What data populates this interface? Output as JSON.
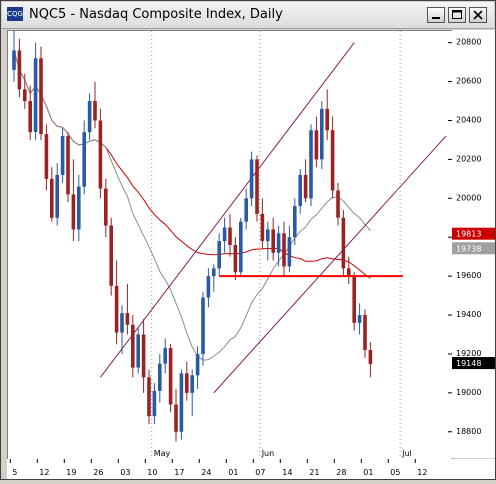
{
  "window": {
    "title": "NQC5 - Nasdaq Composite Index, Daily",
    "icon_label": "CQG",
    "buttons": [
      "minimize",
      "maximize",
      "close"
    ]
  },
  "chart_data": {
    "type": "candlestick",
    "symbol": "NQC5",
    "title": "Nasdaq Composite Index, Daily",
    "ylim": [
      18660,
      20860
    ],
    "y_ticks": [
      20800,
      20600,
      20400,
      20200,
      20000,
      19800,
      19600,
      19400,
      19200,
      19000,
      18800
    ],
    "x_month_labels": [
      {
        "label": "May",
        "index": 26
      },
      {
        "label": "Jun",
        "index": 46
      },
      {
        "label": "Jul",
        "index": 72
      }
    ],
    "x_day_ticks": [
      {
        "label": "5",
        "index": 0
      },
      {
        "label": "12",
        "index": 5
      },
      {
        "label": "19",
        "index": 10
      },
      {
        "label": "26",
        "index": 15
      },
      {
        "label": "03",
        "index": 20
      },
      {
        "label": "10",
        "index": 25
      },
      {
        "label": "17",
        "index": 30
      },
      {
        "label": "24",
        "index": 35
      },
      {
        "label": "01",
        "index": 40
      },
      {
        "label": "07",
        "index": 45
      },
      {
        "label": "14",
        "index": 50
      },
      {
        "label": "21",
        "index": 55
      },
      {
        "label": "28",
        "index": 60
      },
      {
        "label": "01",
        "index": 65
      },
      {
        "label": "05",
        "index": 70
      },
      {
        "label": "12",
        "index": 75
      }
    ],
    "price_labels": [
      {
        "value": 19813,
        "label": "19813",
        "color": "#cc0000"
      },
      {
        "value": 19738,
        "label": "19738",
        "color": "#a0a0a0"
      },
      {
        "value": 19148,
        "label": "19148",
        "color": "#000000"
      }
    ],
    "support_line": {
      "value": 19600,
      "from_index": 38,
      "to_index": 72,
      "color": "#ff0000"
    },
    "channel": {
      "lower": {
        "from": [
          37,
          19000
        ],
        "to": [
          80,
          20320
        ]
      },
      "upper": {
        "from": [
          16,
          19080
        ],
        "to": [
          63,
          20800
        ]
      },
      "color": "#8a1a5a"
    },
    "candles": [
      [
        20660,
        20860,
        20600,
        20760
      ],
      [
        20760,
        20820,
        20520,
        20560
      ],
      [
        20560,
        20640,
        20460,
        20500
      ],
      [
        20500,
        20580,
        20300,
        20340
      ],
      [
        20340,
        20800,
        20300,
        20720
      ],
      [
        20720,
        20780,
        20300,
        20330
      ],
      [
        20330,
        20380,
        20040,
        20100
      ],
      [
        20100,
        20160,
        19880,
        19900
      ],
      [
        19900,
        20180,
        19860,
        20120
      ],
      [
        20120,
        20360,
        20080,
        20320
      ],
      [
        20320,
        20340,
        19980,
        20020
      ],
      [
        20020,
        20200,
        19780,
        19840
      ],
      [
        19840,
        20120,
        19780,
        20060
      ],
      [
        20060,
        20400,
        20020,
        20340
      ],
      [
        20340,
        20540,
        20300,
        20500
      ],
      [
        20500,
        20600,
        20360,
        20400
      ],
      [
        20400,
        20460,
        20000,
        20050
      ],
      [
        20050,
        20100,
        19800,
        19860
      ],
      [
        19860,
        19900,
        19500,
        19550
      ],
      [
        19550,
        19680,
        19250,
        19310
      ],
      [
        19310,
        19450,
        19200,
        19410
      ],
      [
        19410,
        19560,
        19300,
        19350
      ],
      [
        19350,
        19400,
        19080,
        19130
      ],
      [
        19130,
        19340,
        19100,
        19300
      ],
      [
        19300,
        19380,
        19000,
        19080
      ],
      [
        19080,
        19120,
        18840,
        18880
      ],
      [
        18880,
        19050,
        18840,
        19010
      ],
      [
        19010,
        19200,
        18950,
        19150
      ],
      [
        19150,
        19280,
        19100,
        19230
      ],
      [
        19230,
        19250,
        18900,
        18940
      ],
      [
        18940,
        19020,
        18750,
        18800
      ],
      [
        18800,
        19120,
        18760,
        19100
      ],
      [
        19100,
        19160,
        18960,
        19000
      ],
      [
        19000,
        19120,
        18880,
        19090
      ],
      [
        19090,
        19240,
        19020,
        19200
      ],
      [
        19200,
        19520,
        19140,
        19490
      ],
      [
        19490,
        19640,
        19440,
        19600
      ],
      [
        19600,
        19660,
        19520,
        19640
      ],
      [
        19640,
        19820,
        19600,
        19780
      ],
      [
        19780,
        19900,
        19720,
        19850
      ],
      [
        19850,
        19920,
        19700,
        19760
      ],
      [
        19760,
        19800,
        19580,
        19620
      ],
      [
        19620,
        19900,
        19600,
        19880
      ],
      [
        19880,
        20050,
        19840,
        20000
      ],
      [
        20000,
        20240,
        19960,
        20200
      ],
      [
        20200,
        20220,
        19880,
        19920
      ],
      [
        19920,
        20000,
        19740,
        19780
      ],
      [
        19780,
        19880,
        19680,
        19840
      ],
      [
        19840,
        19900,
        19680,
        19720
      ],
      [
        19720,
        19860,
        19650,
        19820
      ],
      [
        19820,
        19880,
        19600,
        19650
      ],
      [
        19650,
        19860,
        19620,
        19800
      ],
      [
        19800,
        20000,
        19760,
        19960
      ],
      [
        19960,
        20150,
        19920,
        20120
      ],
      [
        20120,
        20200,
        19980,
        20000
      ],
      [
        20000,
        20380,
        19960,
        20350
      ],
      [
        20350,
        20420,
        20160,
        20200
      ],
      [
        20200,
        20500,
        20150,
        20460
      ],
      [
        20460,
        20560,
        20300,
        20350
      ],
      [
        20350,
        20420,
        20000,
        20040
      ],
      [
        20040,
        20080,
        19860,
        19900
      ],
      [
        19900,
        19940,
        19600,
        19640
      ],
      [
        19640,
        19700,
        19560,
        19600
      ],
      [
        19600,
        19620,
        19320,
        19360
      ],
      [
        19360,
        19460,
        19300,
        19400
      ],
      [
        19400,
        19430,
        19180,
        19220
      ],
      [
        19220,
        19260,
        19080,
        19148
      ]
    ]
  }
}
